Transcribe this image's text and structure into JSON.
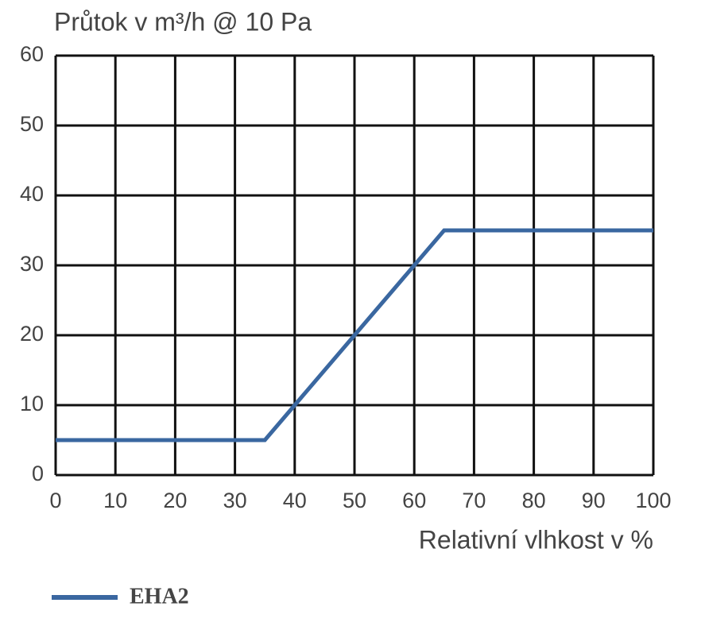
{
  "chart_data": {
    "type": "line",
    "title": "Průtok v m³/h @ 10 Pa",
    "x_label": "Relativní vlhkost v %",
    "x": [
      0,
      35,
      65,
      100
    ],
    "series": [
      {
        "name": "EHA2",
        "color": "#3a67a0",
        "values": [
          5,
          5,
          35,
          35
        ]
      }
    ],
    "xlim": [
      0,
      100
    ],
    "xticks": [
      0,
      10,
      20,
      30,
      40,
      50,
      60,
      70,
      80,
      90,
      100
    ],
    "ylim": [
      0,
      60
    ],
    "yticks": [
      0,
      10,
      20,
      30,
      40,
      50,
      60
    ],
    "grid": true,
    "legend": "bottom"
  }
}
